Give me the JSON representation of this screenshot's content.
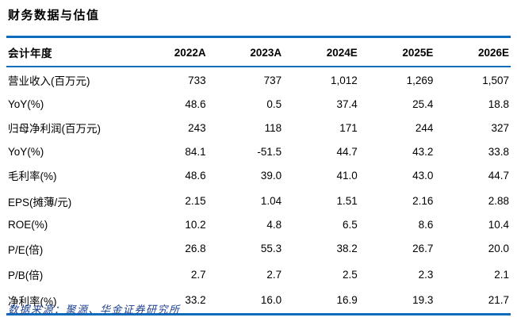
{
  "title": "财务数据与估值",
  "table": {
    "header": [
      "会计年度",
      "2022A",
      "2023A",
      "2024E",
      "2025E",
      "2026E"
    ],
    "rows": [
      [
        "营业收入(百万元)",
        "733",
        "737",
        "1,012",
        "1,269",
        "1,507"
      ],
      [
        "YoY(%)",
        "48.6",
        "0.5",
        "37.4",
        "25.4",
        "18.8"
      ],
      [
        "归母净利润(百万元)",
        "243",
        "118",
        "171",
        "244",
        "327"
      ],
      [
        "YoY(%)",
        "84.1",
        "-51.5",
        "44.7",
        "43.2",
        "33.8"
      ],
      [
        "毛利率(%)",
        "48.6",
        "39.0",
        "41.0",
        "43.0",
        "44.7"
      ],
      [
        "EPS(摊薄/元)",
        "2.15",
        "1.04",
        "1.51",
        "2.16",
        "2.88"
      ],
      [
        "ROE(%)",
        "10.2",
        "4.8",
        "6.5",
        "8.6",
        "10.4"
      ],
      [
        "P/E(倍)",
        "26.8",
        "55.3",
        "38.2",
        "26.7",
        "20.0"
      ],
      [
        "P/B(倍)",
        "2.7",
        "2.7",
        "2.5",
        "2.3",
        "2.1"
      ],
      [
        "净利率(%)",
        "33.2",
        "16.0",
        "16.9",
        "19.3",
        "21.7"
      ]
    ]
  },
  "source_note": "数据来源：聚源、华金证券研究所",
  "colors": {
    "rule_blue": "#0f6cbd",
    "source_text": "#1f418f",
    "body_text": "#000000"
  }
}
